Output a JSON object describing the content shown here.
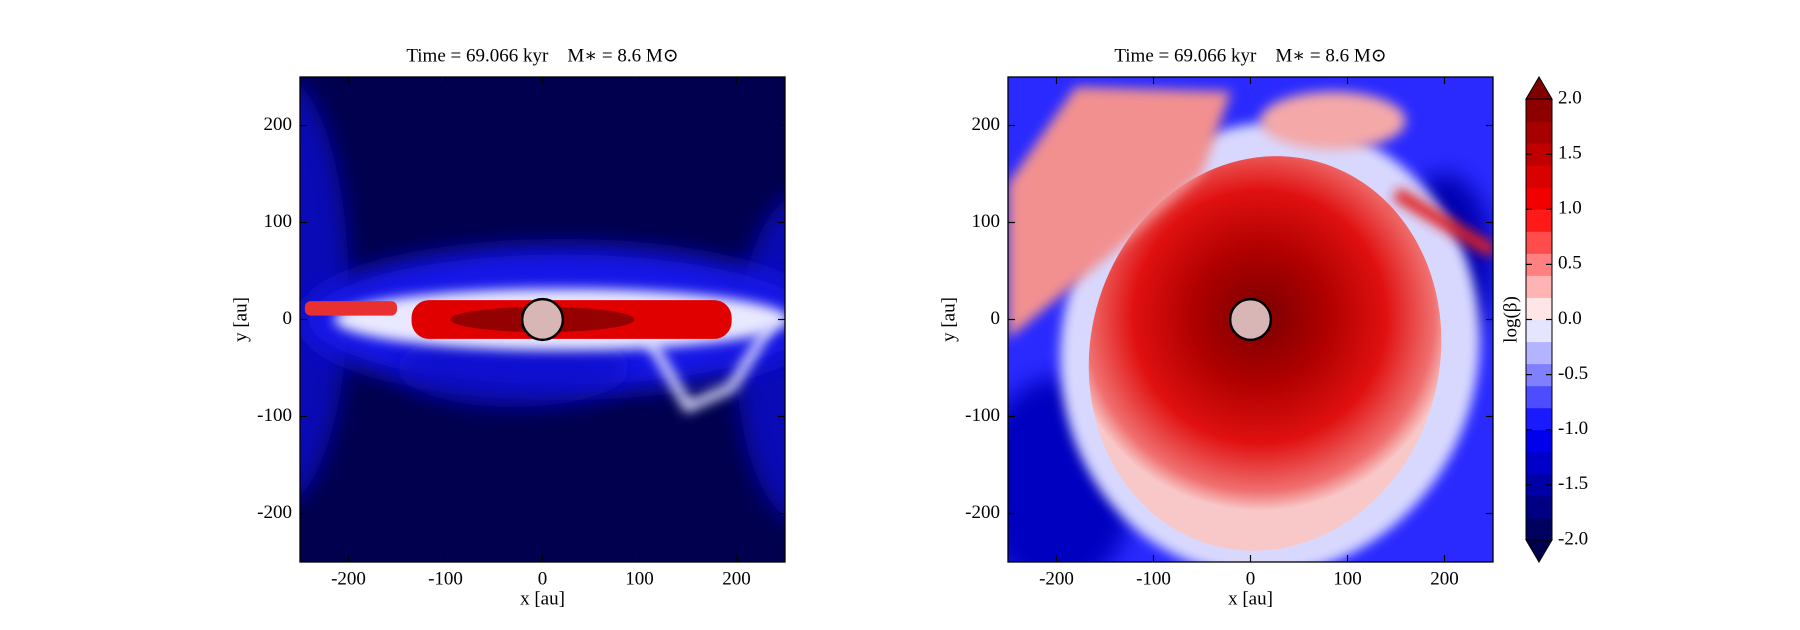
{
  "chart_data": [
    {
      "type": "contourf",
      "title": "Time = 69.066 kyr    M∗ = 8.6 M⊙",
      "xlabel": "x [au]",
      "ylabel": "y [au]",
      "xlim": [
        -250,
        250
      ],
      "ylim": [
        -250,
        250
      ],
      "xticks": [
        -200,
        -100,
        0,
        100,
        200
      ],
      "yticks": [
        -200,
        -100,
        0,
        100,
        200
      ]
    },
    {
      "type": "contourf",
      "title": "Time = 69.066 kyr    M∗ = 8.6 M⊙",
      "xlabel": "x [au]",
      "ylabel": "y [au]",
      "xlim": [
        -250,
        250
      ],
      "ylim": [
        -250,
        250
      ],
      "xticks": [
        -200,
        -100,
        0,
        100,
        200
      ],
      "yticks": [
        -200,
        -100,
        0,
        100,
        200
      ],
      "colorbar": {
        "label": "log(β)",
        "lim": [
          -2,
          2
        ],
        "ticks": [
          {
            "value": 2,
            "label": "2.0"
          },
          {
            "value": 1.5,
            "label": "1.5"
          },
          {
            "value": 1,
            "label": "1.0"
          },
          {
            "value": 0.5,
            "label": "0.5"
          },
          {
            "value": 0,
            "label": "0.0"
          },
          {
            "value": -0.5,
            "label": "-0.5"
          },
          {
            "value": -1,
            "label": "-1.0"
          },
          {
            "value": -1.5,
            "label": "-1.5"
          },
          {
            "value": -2,
            "label": "-2.0"
          }
        ]
      }
    }
  ]
}
